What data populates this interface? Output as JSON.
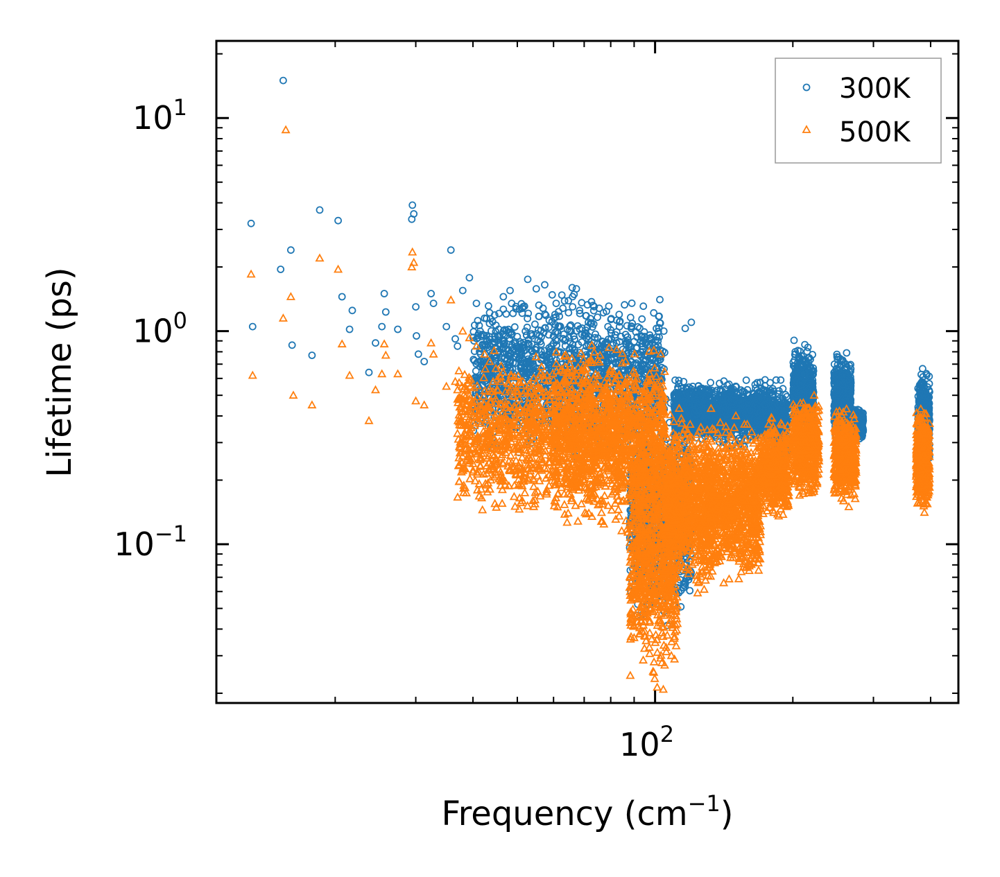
{
  "chart_data": {
    "type": "scatter",
    "title": "",
    "xlabel": "Frequency (cm",
    "xlabel_sup": "−1",
    "xlabel_end": ")",
    "ylabel": "Lifetime (ps)",
    "xscale": "log",
    "yscale": "log",
    "xlim": [
      11,
      460
    ],
    "ylim": [
      0.018,
      23
    ],
    "x_tick_labels": [
      {
        "value": 100,
        "base": "10",
        "exp": "2"
      }
    ],
    "y_tick_labels": [
      {
        "value": 10,
        "base": "10",
        "exp": "1"
      },
      {
        "value": 1,
        "base": "10",
        "exp": "0"
      },
      {
        "value": 0.1,
        "base": "10",
        "exp": "−1"
      }
    ],
    "legend_position": "top-right",
    "series": [
      {
        "name": "300K",
        "color": "#1f77b4",
        "marker": "circle",
        "x": [
          13.1,
          13.2,
          15.2,
          15.4,
          16.0,
          16.1,
          17.8,
          18.5,
          20.3,
          20.7,
          21.5,
          21.8,
          23.7,
          24.5,
          25.3,
          25.6,
          25.8,
          27.4,
          29.4,
          29.5,
          29.7,
          30.0,
          30.1,
          30.4,
          31.3,
          32.4,
          32.8,
          35.0,
          35.8,
          36.6,
          37.0,
          38.0,
          39.3,
          40.7,
          42.4,
          43.5,
          44.7,
          45.3,
          46.6,
          48.2,
          48.6,
          51.3,
          52.7,
          55.0,
          57.4,
          59.6,
          60.8,
          62.9,
          64.7,
          65.9,
          67.3,
          68.4,
          70.6,
          73.2,
          75.5,
          77.1,
          78.9,
          80.2,
          82.4,
          85.0,
          86.9,
          88.7,
          90.2,
          92.6,
          95.3,
          97.8,
          100.4,
          103.0,
          105.5,
          108.1,
          110.7,
          113.2,
          116.4,
          120.0
        ],
        "y": [
          3.2,
          1.05,
          1.95,
          15.0,
          2.4,
          0.86,
          0.77,
          3.7,
          3.3,
          1.45,
          1.02,
          1.25,
          0.64,
          0.88,
          1.05,
          1.5,
          1.23,
          1.02,
          3.35,
          3.9,
          3.55,
          1.3,
          0.95,
          0.78,
          0.72,
          1.5,
          1.35,
          1.05,
          2.4,
          0.92,
          0.85,
          1.55,
          1.78,
          1.35,
          1.15,
          1.22,
          0.88,
          0.95,
          1.45,
          1.55,
          1.35,
          1.28,
          1.75,
          1.58,
          1.65,
          1.48,
          1.35,
          1.28,
          1.22,
          1.6,
          1.58,
          1.25,
          1.18,
          1.32,
          1.28,
          1.22,
          1.05,
          0.92,
          0.88,
          0.82,
          0.78,
          0.72,
          0.7,
          0.65,
          0.62,
          0.58,
          0.55,
          0.5,
          0.48,
          0.46,
          0.45,
          0.44,
          1.03,
          1.1
        ],
        "bands": [
          {
            "x": [
              40,
              105
            ],
            "y": [
              0.22,
              1.7
            ],
            "n": 1500
          },
          {
            "x": [
              88,
              120
            ],
            "y": [
              0.035,
              0.55
            ],
            "n": 700
          },
          {
            "x": [
              110,
              182
            ],
            "y": [
              0.28,
              0.62
            ],
            "n": 1500
          },
          {
            "x": [
              182,
              195
            ],
            "y": [
              0.22,
              0.6
            ],
            "n": 260
          },
          {
            "x": [
              200,
              222
            ],
            "y": [
              0.3,
              0.96
            ],
            "n": 450
          },
          {
            "x": [
              246,
              268
            ],
            "y": [
              0.28,
              0.84
            ],
            "n": 450
          },
          {
            "x": [
              270,
              285
            ],
            "y": [
              0.3,
              0.45
            ],
            "n": 250
          },
          {
            "x": [
              375,
              398
            ],
            "y": [
              0.2,
              0.72
            ],
            "n": 420
          }
        ]
      },
      {
        "name": "500K",
        "color": "#ff7f0e",
        "marker": "triangle",
        "x": [
          13.1,
          13.2,
          15.4,
          15.6,
          16.0,
          16.2,
          17.8,
          18.5,
          20.3,
          20.7,
          21.5,
          23.7,
          24.5,
          25.3,
          25.6,
          25.8,
          27.4,
          29.4,
          29.5,
          29.7,
          30.0,
          31.3,
          32.4,
          32.8,
          35.0,
          35.8,
          36.6,
          37.0,
          38.0,
          39.3,
          40.7,
          42.4,
          43.5
        ],
        "y": [
          1.85,
          0.62,
          1.15,
          8.8,
          1.45,
          0.5,
          0.45,
          2.2,
          1.95,
          0.87,
          0.62,
          0.38,
          0.53,
          0.63,
          0.87,
          0.77,
          0.63,
          2.0,
          2.35,
          2.1,
          0.47,
          0.45,
          0.88,
          0.78,
          0.55,
          1.4,
          0.58,
          0.53,
          1.0,
          0.93,
          0.85,
          0.78,
          0.72
        ],
        "bands": [
          {
            "x": [
              37,
              60
            ],
            "y": [
              0.12,
              0.9
            ],
            "n": 700
          },
          {
            "x": [
              60,
              105
            ],
            "y": [
              0.1,
              1.0
            ],
            "n": 1600
          },
          {
            "x": [
              88,
              112
            ],
            "y": [
              0.019,
              0.4
            ],
            "n": 800
          },
          {
            "x": [
              105,
              170
            ],
            "y": [
              0.055,
              0.45
            ],
            "n": 1800
          },
          {
            "x": [
              170,
              196
            ],
            "y": [
              0.12,
              0.42
            ],
            "n": 500
          },
          {
            "x": [
              200,
              228
            ],
            "y": [
              0.15,
              0.56
            ],
            "n": 500
          },
          {
            "x": [
              246,
              275
            ],
            "y": [
              0.14,
              0.48
            ],
            "n": 500
          },
          {
            "x": [
              372,
              398
            ],
            "y": [
              0.13,
              0.47
            ],
            "n": 450
          }
        ]
      }
    ]
  }
}
